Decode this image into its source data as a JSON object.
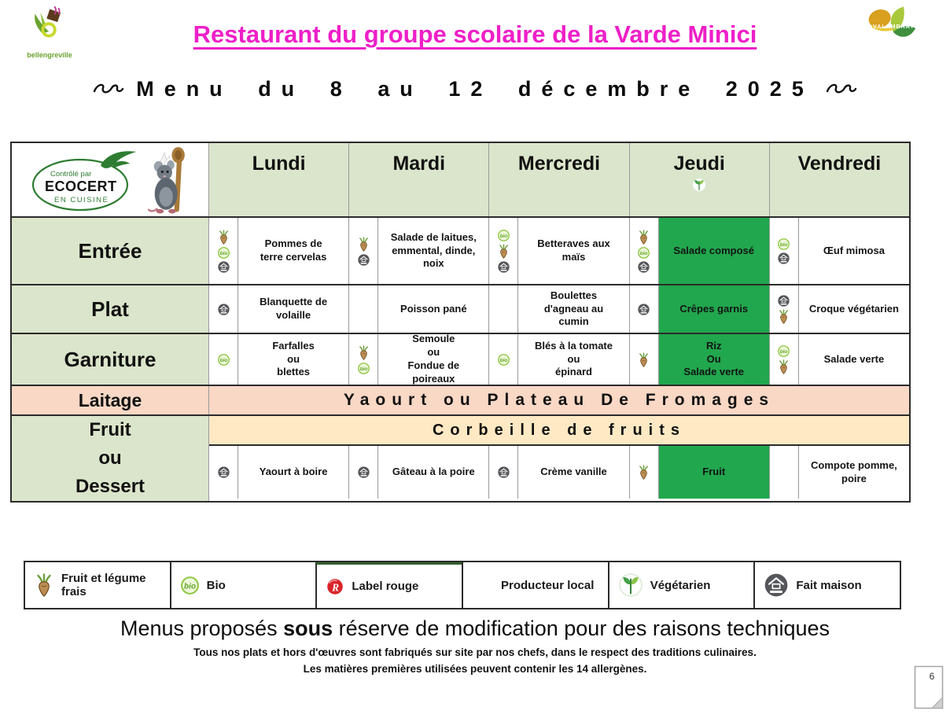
{
  "colors": {
    "title_magenta": "#ee1fc8",
    "header_green": "#dbe5cb",
    "highlight_green": "#21a74d",
    "laitage_pink": "#f9d8c5",
    "corbeille_yellow": "#ffe9c4"
  },
  "header": {
    "left_logo_text": "bellengreville",
    "title": "Restaurant du groupe scolaire de la Varde Minici",
    "right_logo_text": "VALAMBRAY",
    "subtitle": "Menu du 8 au 12 décembre 2025"
  },
  "ecocert": {
    "line1": "Contrôlé par",
    "line2": "ECOCERT",
    "line3": "EN CUISINE"
  },
  "menu": {
    "days": [
      {
        "label": "Lundi",
        "icon": ""
      },
      {
        "label": "Mardi",
        "icon": ""
      },
      {
        "label": "Mercredi",
        "icon": ""
      },
      {
        "label": "Jeudi",
        "icon": "vegetarien"
      },
      {
        "label": "Vendredi",
        "icon": ""
      }
    ],
    "rows": [
      {
        "id": "entree",
        "label": "Entrée",
        "cells": [
          {
            "icons": [
              "fruit",
              "bio",
              "fait-maison"
            ],
            "text": "Pommes de\nterre cervelas",
            "highlight": false
          },
          {
            "icons": [
              "fruit",
              "fait-maison"
            ],
            "text": "Salade de laitues,\nemmental, dinde,\nnoix",
            "highlight": false
          },
          {
            "icons": [
              "bio",
              "fruit",
              "fait-maison"
            ],
            "text": "Betteraves aux\nmaïs",
            "highlight": false
          },
          {
            "icons": [
              "fruit",
              "bio",
              "fait-maison"
            ],
            "text": "Salade composé",
            "highlight": true
          },
          {
            "icons": [
              "bio",
              "fait-maison"
            ],
            "text": "Œuf mimosa",
            "highlight": false
          }
        ]
      },
      {
        "id": "plat",
        "label": "Plat",
        "cells": [
          {
            "icons": [
              "fait-maison"
            ],
            "text": "Blanquette de\nvolaille",
            "highlight": false
          },
          {
            "icons": [],
            "text": "Poisson pané",
            "highlight": false
          },
          {
            "icons": [],
            "text": "Boulettes\nd'agneau au\ncumin",
            "highlight": false
          },
          {
            "icons": [
              "fait-maison"
            ],
            "text": "Crêpes garnis",
            "highlight": true
          },
          {
            "icons": [
              "fait-maison",
              "fruit"
            ],
            "text": "Croque végétarien",
            "highlight": false
          }
        ]
      },
      {
        "id": "garniture",
        "label": "Garniture",
        "cells": [
          {
            "icons": [
              "bio"
            ],
            "text": "Farfalles\nou\nblettes",
            "highlight": false
          },
          {
            "icons": [
              "fruit",
              "bio"
            ],
            "text": "Semoule\nou\nFondue de\npoireaux",
            "highlight": false
          },
          {
            "icons": [
              "bio"
            ],
            "text": "Blés à la tomate\nou\népinard",
            "highlight": false
          },
          {
            "icons": [
              "fruit"
            ],
            "text": "Riz\nOu\nSalade verte",
            "highlight": true
          },
          {
            "icons": [
              "bio",
              "fruit"
            ],
            "text": "Salade verte",
            "highlight": false
          }
        ]
      }
    ],
    "laitage": {
      "label": "Laitage",
      "text": "Yaourt ou Plateau De Fromages"
    },
    "fruit_dessert": {
      "label": "Fruit\nou\nDessert",
      "banner": "Corbeille de fruits",
      "cells": [
        {
          "icons": [
            "fait-maison"
          ],
          "text": "Yaourt à boire",
          "highlight": false
        },
        {
          "icons": [
            "fait-maison"
          ],
          "text": "Gâteau à la poire",
          "highlight": false
        },
        {
          "icons": [
            "fait-maison"
          ],
          "text": "Crème vanille",
          "highlight": false
        },
        {
          "icons": [
            "fruit"
          ],
          "text": "Fruit",
          "highlight": true
        },
        {
          "icons": [],
          "text": "Compote pomme,\npoire",
          "highlight": false
        }
      ]
    }
  },
  "legend": {
    "items": [
      {
        "icon": "fruit",
        "label": "Fruit et légume frais"
      },
      {
        "icon": "bio",
        "label": "Bio"
      },
      {
        "icon": "label-rouge",
        "label": "Label rouge"
      },
      {
        "icon": "",
        "label": "Producteur local"
      },
      {
        "icon": "vegetarien",
        "label": "Végétarien"
      },
      {
        "icon": "fait-maison",
        "label": "Fait maison"
      }
    ]
  },
  "icons": {
    "bio_label": "bio",
    "label_rouge_letter": "R"
  },
  "footer": {
    "line1_prefix": "Menus proposés ",
    "line1_bold": "sous",
    "line1_suffix": " réserve de modification pour des raisons techniques",
    "line2": "Tous nos plats et hors d'œuvres sont fabriqués sur site par nos chefs, dans le respect des traditions culinaires.",
    "line3": "Les matières premières utilisées peuvent contenir les 14 allergènes.",
    "page_number": "6"
  }
}
